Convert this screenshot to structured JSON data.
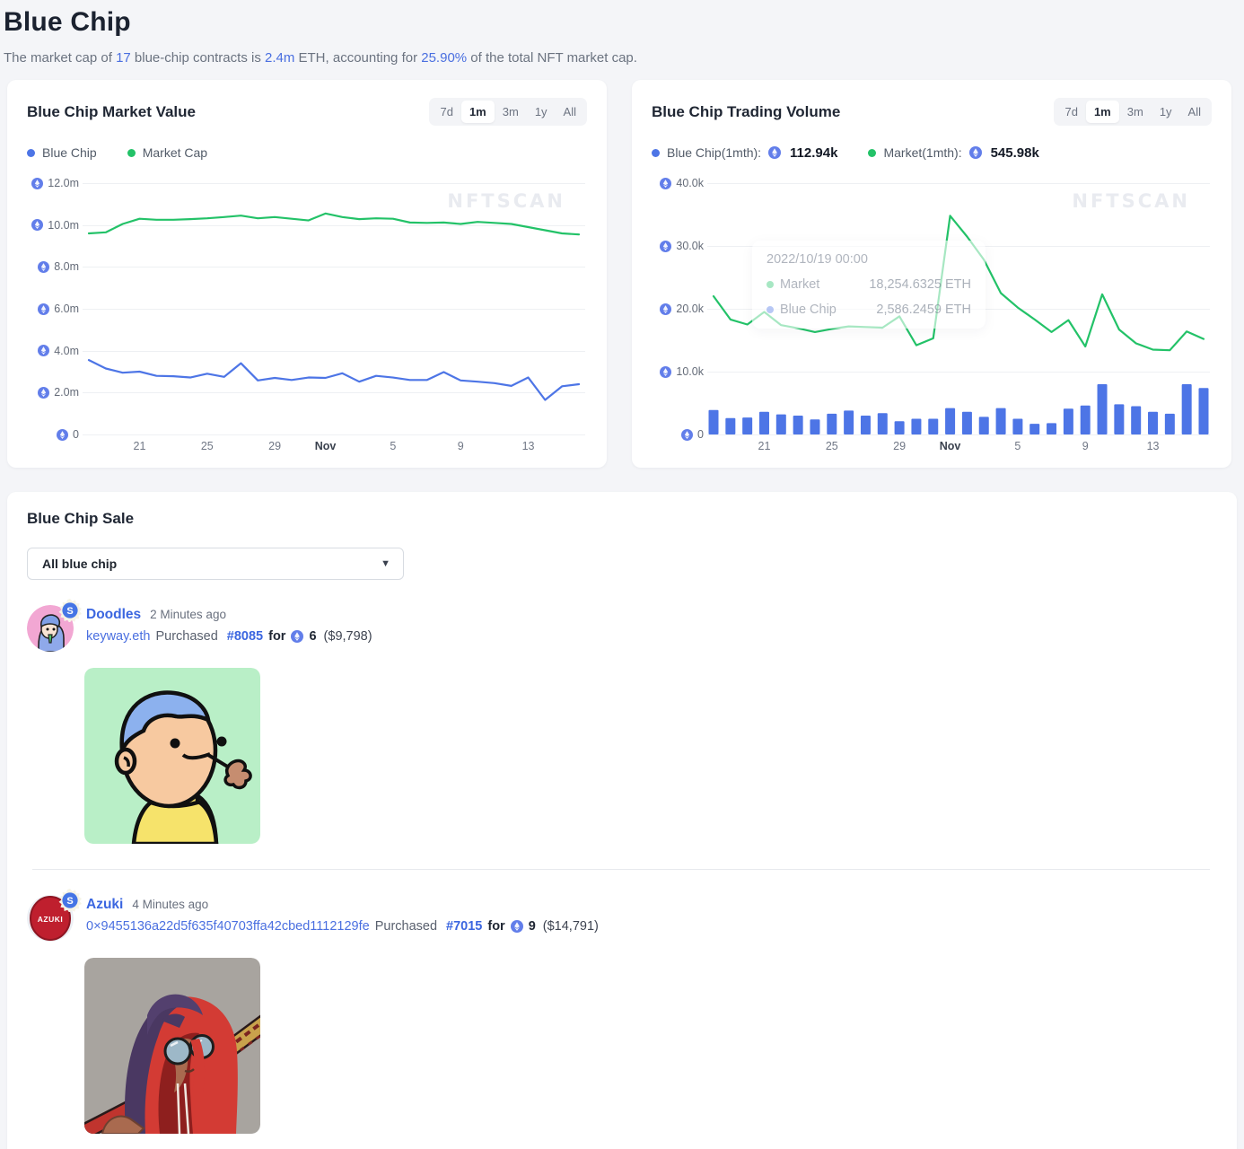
{
  "page": {
    "title": "Blue Chip",
    "subtitle": {
      "p1": "The market cap of ",
      "n1": "17",
      "p2": " blue-chip contracts is ",
      "n2": "2.4m",
      "p3": " ETH, accounting for ",
      "n3": "25.90%",
      "p4": " of the total NFT market cap."
    }
  },
  "watermark": "NFTSCAN",
  "market_value_card": {
    "title": "Blue Chip Market Value",
    "time_filters": [
      "7d",
      "1m",
      "3m",
      "1y",
      "All"
    ],
    "active_filter": "1m",
    "legend": [
      {
        "label": "Blue Chip",
        "color": "#4d75e6"
      },
      {
        "label": "Market Cap",
        "color": "#23c268"
      }
    ]
  },
  "trading_volume_card": {
    "title": "Blue Chip Trading Volume",
    "time_filters": [
      "7d",
      "1m",
      "3m",
      "1y",
      "All"
    ],
    "active_filter": "1m",
    "legend": [
      {
        "label": "Blue Chip(1mth):",
        "value": "112.94k",
        "color": "#4d75e6"
      },
      {
        "label": "Market(1mth):",
        "value": "545.98k",
        "color": "#23c268"
      }
    ],
    "tooltip": {
      "date": "2022/10/19 00:00",
      "rows": [
        {
          "label": "Market",
          "value": "18,254.6325 ETH"
        },
        {
          "label": "Blue Chip",
          "value": "2,586.2459 ETH"
        }
      ]
    }
  },
  "chart_data": [
    {
      "type": "line",
      "title": "Blue Chip Market Value",
      "unit": "ETH",
      "x": [
        "10/18",
        "10/19",
        "10/20",
        "10/21",
        "10/22",
        "10/23",
        "10/24",
        "10/25",
        "10/26",
        "10/27",
        "10/28",
        "10/29",
        "10/30",
        "10/31",
        "11/01",
        "11/02",
        "11/03",
        "11/04",
        "11/05",
        "11/06",
        "11/07",
        "11/08",
        "11/09",
        "11/10",
        "11/11",
        "11/12",
        "11/13",
        "11/14",
        "11/15",
        "11/16"
      ],
      "x_tick_labels": [
        {
          "index": 3,
          "label": "21"
        },
        {
          "index": 7,
          "label": "25"
        },
        {
          "index": 11,
          "label": "29"
        },
        {
          "index": 14,
          "label": "Nov",
          "bold": true
        },
        {
          "index": 18,
          "label": "5"
        },
        {
          "index": 22,
          "label": "9"
        },
        {
          "index": 26,
          "label": "13"
        }
      ],
      "ylim": [
        0,
        12000000
      ],
      "y_ticks": [
        {
          "value": 12000000,
          "label": "12.0m"
        },
        {
          "value": 10000000,
          "label": "10.0m"
        },
        {
          "value": 8000000,
          "label": "8.0m"
        },
        {
          "value": 6000000,
          "label": "6.0m"
        },
        {
          "value": 4000000,
          "label": "4.0m"
        },
        {
          "value": 2000000,
          "label": "2.0m"
        },
        {
          "value": 0,
          "label": "0"
        }
      ],
      "grid": true,
      "legend_position": "top-left",
      "series": [
        {
          "name": "Blue Chip",
          "kind": "line",
          "color": "#4d75e6",
          "values": [
            3550000,
            3150000,
            2950000,
            3000000,
            2800000,
            2780000,
            2720000,
            2900000,
            2750000,
            3400000,
            2580000,
            2700000,
            2600000,
            2720000,
            2700000,
            2920000,
            2520000,
            2800000,
            2720000,
            2600000,
            2600000,
            2980000,
            2580000,
            2520000,
            2450000,
            2320000,
            2720000,
            1650000,
            2300000,
            2400000
          ]
        },
        {
          "name": "Market Cap",
          "kind": "line",
          "color": "#23c268",
          "values": [
            9600000,
            9650000,
            10050000,
            10300000,
            10250000,
            10250000,
            10280000,
            10320000,
            10380000,
            10450000,
            10320000,
            10380000,
            10300000,
            10220000,
            10550000,
            10380000,
            10280000,
            10320000,
            10300000,
            10120000,
            10100000,
            10120000,
            10050000,
            10150000,
            10100000,
            10050000,
            9900000,
            9750000,
            9600000,
            9550000
          ]
        }
      ]
    },
    {
      "type": "mixed",
      "title": "Blue Chip Trading Volume",
      "unit": "ETH",
      "x": [
        "10/18",
        "10/19",
        "10/20",
        "10/21",
        "10/22",
        "10/23",
        "10/24",
        "10/25",
        "10/26",
        "10/27",
        "10/28",
        "10/29",
        "10/30",
        "10/31",
        "11/01",
        "11/02",
        "11/03",
        "11/04",
        "11/05",
        "11/06",
        "11/07",
        "11/08",
        "11/09",
        "11/10",
        "11/11",
        "11/12",
        "11/13",
        "11/14",
        "11/15",
        "11/16"
      ],
      "x_tick_labels": [
        {
          "index": 3,
          "label": "21"
        },
        {
          "index": 7,
          "label": "25"
        },
        {
          "index": 11,
          "label": "29"
        },
        {
          "index": 14,
          "label": "Nov",
          "bold": true
        },
        {
          "index": 18,
          "label": "5"
        },
        {
          "index": 22,
          "label": "9"
        },
        {
          "index": 26,
          "label": "13"
        }
      ],
      "ylim": [
        0,
        40000
      ],
      "y_ticks": [
        {
          "value": 40000,
          "label": "40.0k"
        },
        {
          "value": 30000,
          "label": "30.0k"
        },
        {
          "value": 20000,
          "label": "20.0k"
        },
        {
          "value": 10000,
          "label": "10.0k"
        },
        {
          "value": 0,
          "label": "0"
        }
      ],
      "grid": true,
      "legend_position": "top-left",
      "series": [
        {
          "name": "Blue Chip",
          "kind": "bar",
          "color": "#4d75e6",
          "values": [
            3900,
            2600,
            2700,
            3600,
            3200,
            3000,
            2400,
            3300,
            3800,
            3000,
            3400,
            2100,
            2500,
            2500,
            4200,
            3600,
            2800,
            4200,
            2500,
            1700,
            1800,
            4100,
            4600,
            8000,
            4800,
            4500,
            3600,
            3300,
            8000,
            7400
          ]
        },
        {
          "name": "Market",
          "kind": "line",
          "color": "#23c268",
          "values": [
            22000,
            18300,
            17500,
            19500,
            17400,
            16900,
            16300,
            16800,
            17200,
            17100,
            17000,
            18800,
            14200,
            15300,
            34800,
            31500,
            27800,
            22500,
            20200,
            18300,
            16300,
            18200,
            14000,
            22300,
            16700,
            14500,
            13500,
            13400,
            16400,
            15200
          ]
        }
      ]
    }
  ],
  "sale_section": {
    "title": "Blue Chip Sale",
    "filter_dropdown": {
      "value": "All blue chip"
    },
    "sales": [
      {
        "collection": "Doodles",
        "time": "2 Minutes ago",
        "buyer": "keyway.eth",
        "action": "Purchased",
        "token_id": "#8085",
        "preposition": "for",
        "price_eth": "6",
        "price_usd": "($9,798)",
        "badge_letter": "S"
      },
      {
        "collection": "Azuki",
        "time": "4 Minutes ago",
        "buyer": "0×9455136a22d5f635f40703ffa42cbed1112129fe",
        "action": "Purchased",
        "token_id": "#7015",
        "preposition": "for",
        "price_eth": "9",
        "price_usd": "($14,791)",
        "badge_letter": "S",
        "avatar_label": "AZUKI"
      }
    ]
  }
}
